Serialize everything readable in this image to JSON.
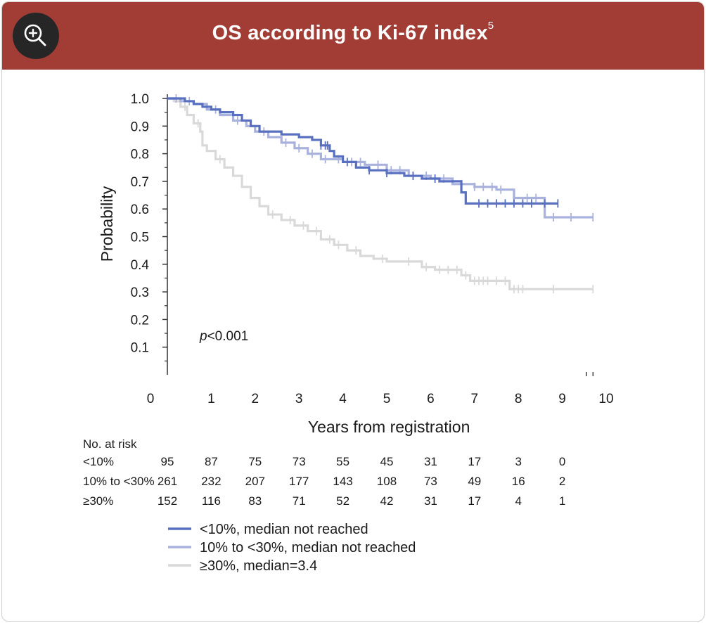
{
  "header": {
    "title": "OS according to Ki-67 index",
    "title_superscript": "5",
    "background_color": "#a23d36",
    "zoom_icon": "zoom-in-icon"
  },
  "chart_data": {
    "type": "line",
    "title": "OS according to Ki-67 index",
    "xlabel": "Years from registration",
    "ylabel": "Probability",
    "xlim": [
      0,
      10
    ],
    "ylim": [
      0,
      1.0
    ],
    "x_ticks": [
      "0",
      "1",
      "2",
      "3",
      "4",
      "5",
      "6",
      "7",
      "8",
      "9",
      "10"
    ],
    "y_ticks": [
      "0.1",
      "0.2",
      "0.3",
      "0.4",
      "0.5",
      "0.6",
      "0.7",
      "0.8",
      "0.9",
      "1.0"
    ],
    "annotation_italic": "p",
    "annotation_rest": "<0.001",
    "series": [
      {
        "name": "<10%",
        "legend": "<10%, median not reached",
        "color": "#5870bf",
        "x": [
          0,
          0.4,
          0.6,
          0.8,
          1.0,
          1.2,
          1.5,
          1.7,
          1.9,
          2.1,
          2.6,
          3.0,
          3.3,
          3.5,
          3.7,
          3.8,
          4.0,
          4.3,
          4.6,
          5.0,
          5.2,
          5.4,
          5.8,
          6.2,
          6.5,
          6.7,
          6.8,
          7.0,
          8.0,
          8.9
        ],
        "y": [
          1.0,
          0.99,
          0.98,
          0.97,
          0.96,
          0.95,
          0.94,
          0.92,
          0.9,
          0.88,
          0.87,
          0.86,
          0.85,
          0.83,
          0.81,
          0.79,
          0.77,
          0.75,
          0.74,
          0.73,
          0.73,
          0.72,
          0.71,
          0.7,
          0.7,
          0.66,
          0.62,
          0.62,
          0.62,
          0.62
        ],
        "censor_x": [
          3.5,
          3.6,
          3.65,
          4.1,
          4.6,
          5.0,
          5.6,
          6.1,
          7.1,
          7.3,
          7.5,
          7.7,
          7.9,
          8.1,
          8.3,
          8.6,
          8.9
        ]
      },
      {
        "name": "10% to <30%",
        "legend": "10% to <30%, median not reached",
        "color": "#a9b1dd",
        "x": [
          0,
          0.3,
          0.6,
          0.9,
          1.2,
          1.5,
          1.8,
          2.0,
          2.3,
          2.6,
          2.9,
          3.2,
          3.5,
          4.0,
          4.5,
          5.0,
          5.5,
          6.0,
          6.5,
          7.0,
          7.5,
          7.9,
          8.5,
          8.6,
          9.0,
          9.7
        ],
        "y": [
          1.0,
          0.99,
          0.98,
          0.96,
          0.94,
          0.92,
          0.9,
          0.88,
          0.86,
          0.84,
          0.82,
          0.8,
          0.78,
          0.77,
          0.76,
          0.74,
          0.72,
          0.71,
          0.69,
          0.68,
          0.67,
          0.64,
          0.64,
          0.57,
          0.57,
          0.57
        ],
        "censor_x": [
          0.2,
          0.5,
          1.1,
          1.6,
          2.2,
          2.7,
          3.0,
          3.3,
          3.6,
          3.9,
          4.2,
          4.4,
          4.8,
          5.1,
          5.3,
          5.6,
          5.9,
          6.3,
          6.7,
          7.0,
          7.2,
          7.4,
          7.6,
          7.9,
          8.2,
          8.4,
          8.8,
          9.2,
          9.7
        ]
      },
      {
        "name": "≥30%",
        "legend": "≥30%, median=3.4",
        "color": "#d9d9d9",
        "x": [
          0,
          0.15,
          0.3,
          0.45,
          0.6,
          0.75,
          0.8,
          0.9,
          1.1,
          1.3,
          1.5,
          1.7,
          1.9,
          2.1,
          2.3,
          2.6,
          2.9,
          3.2,
          3.5,
          3.8,
          4.1,
          4.4,
          4.7,
          5.0,
          5.3,
          5.8,
          6.1,
          6.5,
          6.7,
          6.9,
          7.4,
          7.6,
          7.8,
          8.3,
          9.7
        ],
        "y": [
          1.0,
          0.99,
          0.97,
          0.94,
          0.91,
          0.88,
          0.83,
          0.81,
          0.78,
          0.75,
          0.72,
          0.68,
          0.64,
          0.61,
          0.58,
          0.56,
          0.54,
          0.52,
          0.49,
          0.47,
          0.45,
          0.43,
          0.42,
          0.41,
          0.41,
          0.39,
          0.38,
          0.38,
          0.36,
          0.34,
          0.34,
          0.34,
          0.31,
          0.31,
          0.31
        ],
        "censor_x": [
          0.4,
          0.7,
          1.2,
          2.4,
          2.8,
          3.1,
          3.4,
          3.7,
          3.9,
          4.3,
          4.9,
          5.5,
          5.9,
          6.2,
          6.4,
          6.6,
          6.8,
          7.0,
          7.1,
          7.2,
          7.3,
          7.5,
          7.7,
          7.9,
          8.0,
          8.1,
          8.8,
          9.7
        ]
      }
    ],
    "at_risk": {
      "title": "No. at risk",
      "times": [
        0,
        1,
        2,
        3,
        4,
        5,
        6,
        7,
        8,
        9
      ],
      "rows": [
        {
          "label": "<10%",
          "values": [
            "95",
            "87",
            "75",
            "73",
            "55",
            "45",
            "31",
            "17",
            "3",
            "0"
          ]
        },
        {
          "label": "10% to <30%",
          "values": [
            "261",
            "232",
            "207",
            "177",
            "143",
            "108",
            "73",
            "49",
            "16",
            "2"
          ]
        },
        {
          "label": "≥30%",
          "values": [
            "152",
            "116",
            "83",
            "71",
            "52",
            "42",
            "31",
            "17",
            "4",
            "1"
          ]
        }
      ]
    }
  }
}
